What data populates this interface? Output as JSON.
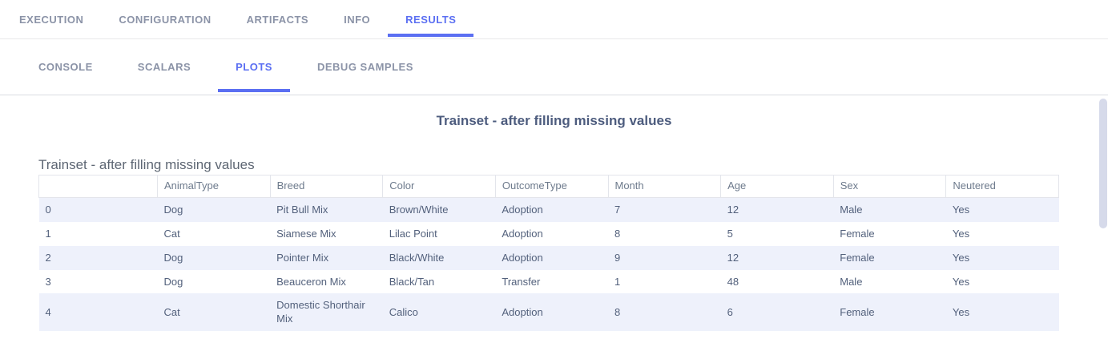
{
  "nav": {
    "tabs": [
      {
        "label": "EXECUTION",
        "active": false
      },
      {
        "label": "CONFIGURATION",
        "active": false
      },
      {
        "label": "ARTIFACTS",
        "active": false
      },
      {
        "label": "INFO",
        "active": false
      },
      {
        "label": "RESULTS",
        "active": true
      }
    ]
  },
  "subnav": {
    "tabs": [
      {
        "label": "CONSOLE",
        "active": false
      },
      {
        "label": "SCALARS",
        "active": false
      },
      {
        "label": "PLOTS",
        "active": true
      },
      {
        "label": "DEBUG SAMPLES",
        "active": false
      }
    ]
  },
  "plot": {
    "heading": "Trainset - after filling missing values",
    "table_title": "Trainset - after filling missing values"
  },
  "chart_data": {
    "type": "table",
    "title": "Trainset - after filling missing values",
    "columns": [
      "",
      "AnimalType",
      "Breed",
      "Color",
      "OutcomeType",
      "Month",
      "Age",
      "Sex",
      "Neutered"
    ],
    "rows": [
      [
        "0",
        "Dog",
        "Pit Bull Mix",
        "Brown/White",
        "Adoption",
        "7",
        "12",
        "Male",
        "Yes"
      ],
      [
        "1",
        "Cat",
        "Siamese Mix",
        "Lilac Point",
        "Adoption",
        "8",
        "5",
        "Female",
        "Yes"
      ],
      [
        "2",
        "Dog",
        "Pointer Mix",
        "Black/White",
        "Adoption",
        "9",
        "12",
        "Female",
        "Yes"
      ],
      [
        "3",
        "Dog",
        "Beauceron Mix",
        "Black/Tan",
        "Transfer",
        "1",
        "48",
        "Male",
        "Yes"
      ],
      [
        "4",
        "Cat",
        "Domestic Shorthair Mix",
        "Calico",
        "Adoption",
        "8",
        "6",
        "Female",
        "Yes"
      ]
    ]
  },
  "colors": {
    "accent": "#5b6ff2",
    "row_alt_background": "#eef1fb",
    "active_tab": "#5b6ff2",
    "inactive_tab": "#8b93a7"
  }
}
